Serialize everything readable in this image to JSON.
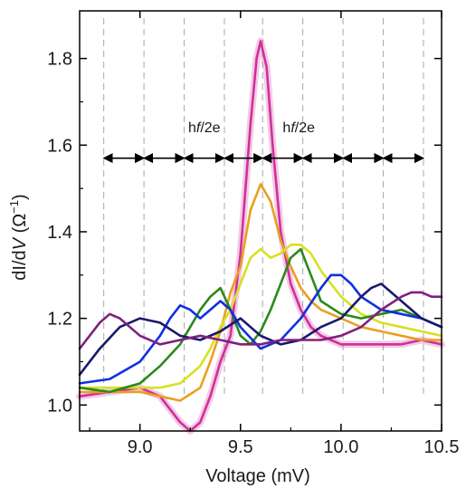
{
  "chart_data": {
    "type": "line",
    "xlabel": "Voltage (mV)",
    "ylabel_prefix": "dI/d",
    "ylabel_italic": "V",
    "ylabel_unit_open": " (Ω",
    "ylabel_unit_sup": "−1",
    "ylabel_unit_close": ")",
    "xlim": [
      8.7,
      10.5
    ],
    "ylim": [
      0.94,
      1.91
    ],
    "xticks": [
      9.0,
      9.5,
      10.0,
      10.5
    ],
    "xtick_labels": [
      "9.0",
      "9.5",
      "10.0",
      "10.5"
    ],
    "yticks": [
      1.0,
      1.2,
      1.4,
      1.6,
      1.8
    ],
    "ytick_labels": [
      "1.0",
      "1.2",
      "1.4",
      "1.6",
      "1.8"
    ],
    "reference_lines_x": [
      8.82,
      9.02,
      9.22,
      9.42,
      9.61,
      9.81,
      10.01,
      10.21,
      10.41
    ],
    "annotations": [
      {
        "text_prefix": "h",
        "text_italic": "f",
        "text_suffix": "/2e",
        "x": 9.32,
        "y": 1.63
      },
      {
        "text_prefix": "h",
        "text_italic": "f",
        "text_suffix": "/2e",
        "x": 9.79,
        "y": 1.63
      }
    ],
    "arrow_row_y": 1.57,
    "series": [
      {
        "color": "#d0309a",
        "glow": true,
        "x": [
          8.7,
          8.85,
          9.0,
          9.1,
          9.15,
          9.2,
          9.25,
          9.3,
          9.35,
          9.4,
          9.45,
          9.5,
          9.55,
          9.58,
          9.6,
          9.63,
          9.66,
          9.7,
          9.75,
          9.8,
          9.85,
          9.9,
          9.95,
          10.0,
          10.05,
          10.1,
          10.2,
          10.3,
          10.4,
          10.5
        ],
        "y": [
          1.02,
          1.03,
          1.04,
          1.02,
          0.99,
          0.96,
          0.94,
          0.96,
          1.02,
          1.1,
          1.16,
          1.35,
          1.65,
          1.8,
          1.84,
          1.78,
          1.6,
          1.4,
          1.28,
          1.22,
          1.18,
          1.16,
          1.15,
          1.14,
          1.14,
          1.14,
          1.14,
          1.14,
          1.15,
          1.14
        ]
      },
      {
        "color": "#e8a020",
        "x": [
          8.7,
          8.85,
          9.0,
          9.1,
          9.2,
          9.3,
          9.35,
          9.4,
          9.45,
          9.5,
          9.55,
          9.6,
          9.65,
          9.7,
          9.75,
          9.8,
          9.85,
          9.9,
          10.0,
          10.1,
          10.2,
          10.3,
          10.4,
          10.5
        ],
        "y": [
          1.03,
          1.03,
          1.03,
          1.02,
          1.01,
          1.04,
          1.1,
          1.17,
          1.26,
          1.32,
          1.45,
          1.51,
          1.47,
          1.38,
          1.32,
          1.27,
          1.24,
          1.22,
          1.2,
          1.18,
          1.17,
          1.16,
          1.15,
          1.15
        ]
      },
      {
        "color": "#d8e020",
        "x": [
          8.7,
          8.85,
          9.0,
          9.1,
          9.2,
          9.3,
          9.35,
          9.4,
          9.45,
          9.5,
          9.55,
          9.6,
          9.65,
          9.7,
          9.75,
          9.8,
          9.85,
          9.9,
          10.0,
          10.1,
          10.2,
          10.3,
          10.4,
          10.5
        ],
        "y": [
          1.04,
          1.04,
          1.04,
          1.04,
          1.05,
          1.09,
          1.13,
          1.18,
          1.22,
          1.28,
          1.34,
          1.36,
          1.34,
          1.35,
          1.37,
          1.37,
          1.35,
          1.31,
          1.25,
          1.21,
          1.19,
          1.18,
          1.17,
          1.16
        ]
      },
      {
        "color": "#2a8a1a",
        "x": [
          8.7,
          8.85,
          9.0,
          9.1,
          9.2,
          9.25,
          9.3,
          9.35,
          9.4,
          9.45,
          9.5,
          9.55,
          9.6,
          9.65,
          9.7,
          9.75,
          9.8,
          9.85,
          9.9,
          10.0,
          10.1,
          10.2,
          10.3,
          10.4,
          10.5
        ],
        "y": [
          1.04,
          1.03,
          1.05,
          1.09,
          1.14,
          1.18,
          1.22,
          1.25,
          1.27,
          1.22,
          1.16,
          1.14,
          1.17,
          1.22,
          1.28,
          1.34,
          1.36,
          1.3,
          1.24,
          1.21,
          1.2,
          1.21,
          1.22,
          1.2,
          1.18
        ]
      },
      {
        "color": "#1030e0",
        "x": [
          8.7,
          8.85,
          9.0,
          9.1,
          9.15,
          9.2,
          9.25,
          9.3,
          9.35,
          9.4,
          9.45,
          9.5,
          9.6,
          9.7,
          9.8,
          9.9,
          9.95,
          10.0,
          10.05,
          10.1,
          10.2,
          10.3,
          10.4,
          10.5
        ],
        "y": [
          1.05,
          1.06,
          1.1,
          1.16,
          1.2,
          1.23,
          1.22,
          1.2,
          1.22,
          1.24,
          1.22,
          1.18,
          1.13,
          1.15,
          1.2,
          1.27,
          1.3,
          1.3,
          1.28,
          1.25,
          1.22,
          1.21,
          1.2,
          1.18
        ]
      },
      {
        "color": "#1a1a6a",
        "x": [
          8.7,
          8.8,
          8.9,
          9.0,
          9.1,
          9.2,
          9.3,
          9.4,
          9.5,
          9.6,
          9.7,
          9.8,
          9.9,
          10.0,
          10.1,
          10.15,
          10.2,
          10.3,
          10.4,
          10.5
        ],
        "y": [
          1.07,
          1.13,
          1.18,
          1.2,
          1.19,
          1.16,
          1.15,
          1.17,
          1.2,
          1.16,
          1.14,
          1.15,
          1.18,
          1.2,
          1.25,
          1.27,
          1.28,
          1.24,
          1.2,
          1.18
        ]
      },
      {
        "color": "#802080",
        "x": [
          8.7,
          8.8,
          8.85,
          8.9,
          9.0,
          9.1,
          9.2,
          9.3,
          9.4,
          9.5,
          9.6,
          9.7,
          9.8,
          9.9,
          10.0,
          10.1,
          10.2,
          10.3,
          10.35,
          10.4,
          10.45,
          10.5
        ],
        "y": [
          1.13,
          1.19,
          1.21,
          1.2,
          1.16,
          1.14,
          1.15,
          1.16,
          1.15,
          1.14,
          1.14,
          1.15,
          1.15,
          1.15,
          1.16,
          1.18,
          1.22,
          1.25,
          1.26,
          1.26,
          1.25,
          1.25
        ]
      }
    ]
  }
}
